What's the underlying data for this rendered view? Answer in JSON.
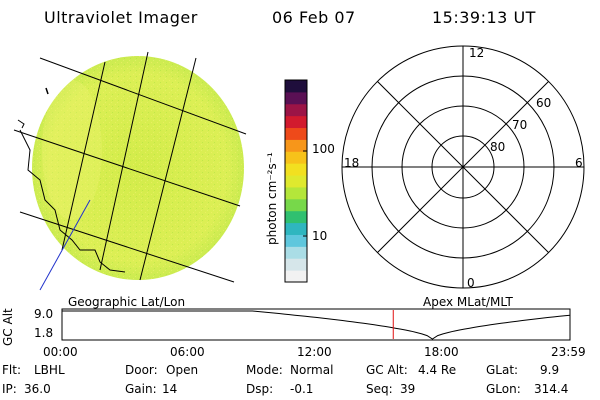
{
  "header": {
    "instrument": "Ultraviolet Imager",
    "date": "06 Feb 07",
    "time": "15:39:13 UT"
  },
  "colorbar": {
    "unit_label": "photon cm⁻²s⁻¹",
    "tick_100": "100",
    "tick_10": "10",
    "colors": [
      "#f2f2f2",
      "#d6e6ea",
      "#aadde6",
      "#5fc7dd",
      "#2fb6bf",
      "#30c070",
      "#77d84a",
      "#b4e63a",
      "#dfe92e",
      "#f2e020",
      "#f7c21a",
      "#f7961a",
      "#ee4a1a",
      "#d21a2e",
      "#9c1446",
      "#5a1054",
      "#1f0e3c"
    ]
  },
  "polar": {
    "mlt_12": "12",
    "mlt_18": "18",
    "mlt_6": "6",
    "mlt_0": "0",
    "lat_60": "60",
    "lat_70": "70",
    "lat_80": "80"
  },
  "map_labels": {
    "geographic": "Geographic Lat/Lon",
    "apex": "Apex MLat/MLT"
  },
  "alt_plot": {
    "ylabel": "GC Alt",
    "ytick_top": "9.0",
    "ytick_bottom": "1.8",
    "xticks": [
      "00:00",
      "06:00",
      "12:00",
      "18:00",
      "23:59"
    ],
    "current_hour": 15.65,
    "min_hour": 17.5
  },
  "status": {
    "row1": [
      {
        "label": "Flt:",
        "value": "LBHL"
      },
      {
        "label": "Door:",
        "value": "Open"
      },
      {
        "label": "Mode:",
        "value": "Normal"
      },
      {
        "label": "GC Alt:",
        "value": "4.4 Re"
      },
      {
        "label": "GLat:",
        "value": "9.9"
      }
    ],
    "row2": [
      {
        "label": "IP:",
        "value": "36.0"
      },
      {
        "label": "Gain:",
        "value": "14"
      },
      {
        "label": "Dsp:",
        "value": "-0.1"
      },
      {
        "label": "Seq:",
        "value": "39"
      },
      {
        "label": "GLon:",
        "value": "314.4"
      }
    ]
  }
}
